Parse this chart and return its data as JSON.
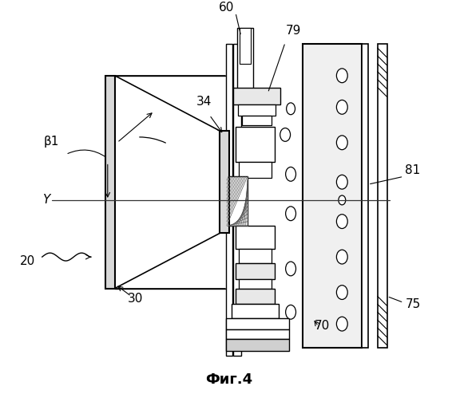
{
  "title": "Фиг.4",
  "bg": "#ffffff",
  "lc": "#000000",
  "figsize": [
    5.71,
    4.99
  ],
  "dpi": 100
}
